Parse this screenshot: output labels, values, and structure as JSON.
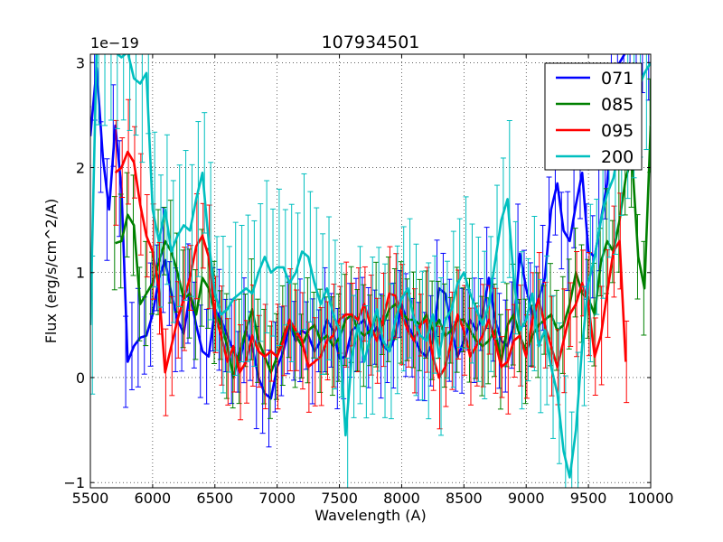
{
  "chart_data": {
    "type": "line",
    "title": "107934501",
    "xlabel": "Wavelength (A)",
    "ylabel": "Flux (erg/s/cm^2/A)",
    "y_offset_text": "1e−19",
    "xlim": [
      5500,
      10000
    ],
    "ylim": [
      -1.05,
      3.08
    ],
    "xticks": [
      5500,
      6000,
      6500,
      7000,
      7500,
      8000,
      8500,
      9000,
      9500,
      10000
    ],
    "yticks": [
      -1,
      0,
      1,
      2,
      3
    ],
    "ytick_labels": [
      "−1",
      "0",
      "1",
      "2",
      "3"
    ],
    "grid": true,
    "legend_position": "top-right",
    "series": [
      {
        "name": "071",
        "color": "#0000ff",
        "x": [
          5500,
          5550,
          5600,
          5650,
          5700,
          5750,
          5800,
          5850,
          5900,
          5950,
          6000,
          6050,
          6100,
          6150,
          6200,
          6250,
          6300,
          6350,
          6400,
          6450,
          6500,
          6550,
          6600,
          6650,
          6700,
          6750,
          6800,
          6850,
          6900,
          6950,
          7000,
          7050,
          7100,
          7150,
          7200,
          7250,
          7300,
          7350,
          7400,
          7450,
          7500,
          7550,
          7600,
          7650,
          7700,
          7750,
          7800,
          7850,
          7900,
          7950,
          8000,
          8050,
          8100,
          8150,
          8200,
          8250,
          8300,
          8350,
          8400,
          8450,
          8500,
          8550,
          8600,
          8650,
          8700,
          8750,
          8800,
          8850,
          8900,
          8950,
          9000,
          9050,
          9100,
          9150,
          9200,
          9250,
          9300,
          9350,
          9400,
          9450,
          9500,
          9550,
          9600,
          9650,
          9700,
          9750,
          9800,
          9850,
          9900,
          9950,
          10000
        ],
        "y": [
          2.3,
          2.95,
          2.1,
          1.6,
          2.4,
          1.8,
          0.15,
          0.3,
          0.38,
          0.4,
          0.6,
          0.95,
          1.12,
          0.8,
          0.55,
          0.42,
          0.8,
          0.5,
          0.25,
          0.2,
          0.65,
          0.55,
          0.4,
          0.25,
          0.15,
          0.45,
          0.3,
          0.0,
          -0.15,
          -0.2,
          0.1,
          0.25,
          0.5,
          0.35,
          0.45,
          0.4,
          0.25,
          0.35,
          0.55,
          0.45,
          0.18,
          0.2,
          0.45,
          0.5,
          0.55,
          0.38,
          0.48,
          0.3,
          0.25,
          0.4,
          0.7,
          0.5,
          0.38,
          0.25,
          0.2,
          0.35,
          0.85,
          0.8,
          0.45,
          0.2,
          0.35,
          0.55,
          0.45,
          0.6,
          0.95,
          0.55,
          0.35,
          0.3,
          0.5,
          1.18,
          0.85,
          0.6,
          0.75,
          0.95,
          1.6,
          1.85,
          1.4,
          1.3,
          1.65,
          1.95,
          1.2,
          1.15,
          1.5,
          1.85,
          2.6,
          3.0,
          3.1,
          3.1,
          3.1,
          3.1,
          3.1
        ]
      },
      {
        "name": "085",
        "color": "#008000",
        "x": [
          5700,
          5750,
          5800,
          5850,
          5900,
          5950,
          6000,
          6050,
          6100,
          6150,
          6200,
          6250,
          6300,
          6350,
          6400,
          6450,
          6500,
          6550,
          6600,
          6650,
          6700,
          6750,
          6800,
          6850,
          6900,
          6950,
          7000,
          7050,
          7100,
          7150,
          7200,
          7250,
          7300,
          7350,
          7400,
          7450,
          7500,
          7550,
          7600,
          7650,
          7700,
          7750,
          7800,
          7850,
          7900,
          7950,
          8000,
          8050,
          8100,
          8150,
          8200,
          8250,
          8300,
          8350,
          8400,
          8450,
          8500,
          8550,
          8600,
          8650,
          8700,
          8750,
          8800,
          8850,
          8900,
          8950,
          9000,
          9050,
          9100,
          9150,
          9200,
          9250,
          9300,
          9350,
          9400,
          9450,
          9500,
          9550,
          9600,
          9650,
          9700,
          9750,
          9800,
          9850,
          9900,
          9950,
          10000
        ],
        "y": [
          1.28,
          1.3,
          1.55,
          1.45,
          0.7,
          0.8,
          0.9,
          1.1,
          1.3,
          1.2,
          1.0,
          0.75,
          0.8,
          0.6,
          0.95,
          0.85,
          0.62,
          0.5,
          0.3,
          0.0,
          0.25,
          0.45,
          0.65,
          0.35,
          0.2,
          0.05,
          0.2,
          0.4,
          0.55,
          0.4,
          0.3,
          0.45,
          0.5,
          0.35,
          0.4,
          0.3,
          0.38,
          0.55,
          0.6,
          0.45,
          0.4,
          0.45,
          0.6,
          0.5,
          0.65,
          0.7,
          0.62,
          0.55,
          0.55,
          0.5,
          0.6,
          0.45,
          0.55,
          0.4,
          0.45,
          0.55,
          0.55,
          0.45,
          0.35,
          0.3,
          0.35,
          0.45,
          0.15,
          0.5,
          0.6,
          0.4,
          0.25,
          0.4,
          0.5,
          0.55,
          0.6,
          0.45,
          0.5,
          0.7,
          1.0,
          0.8,
          0.75,
          0.6,
          1.1,
          1.3,
          1.2,
          1.5,
          1.9,
          2.1,
          1.15,
          0.85,
          2.4
        ]
      },
      {
        "name": "095",
        "color": "#ff0000",
        "x": [
          5700,
          5750,
          5800,
          5850,
          5900,
          5950,
          6000,
          6050,
          6100,
          6150,
          6200,
          6250,
          6300,
          6350,
          6400,
          6450,
          6500,
          6550,
          6600,
          6650,
          6700,
          6750,
          6800,
          6850,
          6900,
          6950,
          7000,
          7050,
          7100,
          7150,
          7200,
          7250,
          7300,
          7350,
          7400,
          7450,
          7500,
          7550,
          7600,
          7650,
          7700,
          7750,
          7800,
          7850,
          7900,
          7950,
          8000,
          8050,
          8100,
          8150,
          8200,
          8250,
          8300,
          8350,
          8400,
          8450,
          8500,
          8550,
          8600,
          8650,
          8700,
          8750,
          8800,
          8850,
          8900,
          8950,
          9000,
          9050,
          9100,
          9150,
          9200,
          9250,
          9300,
          9350,
          9400,
          9450,
          9500,
          9550,
          9600,
          9650,
          9700,
          9750,
          9800
        ],
        "y": [
          1.95,
          2.0,
          2.15,
          2.05,
          1.65,
          1.35,
          1.2,
          0.85,
          0.05,
          0.3,
          0.55,
          0.75,
          0.95,
          1.25,
          1.35,
          1.15,
          0.6,
          0.4,
          0.15,
          0.3,
          0.05,
          0.15,
          0.4,
          0.25,
          0.2,
          0.25,
          0.2,
          0.35,
          0.55,
          0.45,
          0.35,
          0.1,
          0.15,
          0.2,
          0.35,
          0.4,
          0.55,
          0.6,
          0.6,
          0.55,
          0.7,
          0.5,
          0.35,
          0.55,
          0.8,
          0.78,
          0.6,
          0.45,
          0.35,
          0.5,
          0.55,
          0.2,
          0.0,
          0.1,
          0.35,
          0.6,
          0.45,
          0.2,
          0.3,
          0.4,
          0.55,
          0.35,
          0.1,
          0.15,
          0.35,
          0.4,
          0.2,
          0.55,
          0.75,
          0.5,
          0.3,
          0.1,
          0.35,
          0.6,
          0.7,
          0.9,
          0.7,
          0.2,
          0.4,
          0.8,
          1.2,
          1.3,
          0.15
        ]
      },
      {
        "name": "200",
        "color": "#00bfbf",
        "x": [
          5500,
          5550,
          5600,
          5650,
          5700,
          5750,
          5800,
          5850,
          5900,
          5950,
          6000,
          6050,
          6100,
          6150,
          6200,
          6250,
          6300,
          6350,
          6400,
          6450,
          6500,
          6550,
          6600,
          6650,
          6700,
          6750,
          6800,
          6850,
          6900,
          6950,
          7000,
          7050,
          7100,
          7150,
          7200,
          7250,
          7300,
          7350,
          7400,
          7450,
          7500,
          7550,
          7600,
          7650,
          7700,
          7750,
          7800,
          7850,
          7900,
          7950,
          8000,
          8050,
          8100,
          8150,
          8200,
          8250,
          8300,
          8350,
          8400,
          8450,
          8500,
          8550,
          8600,
          8650,
          8700,
          8750,
          8800,
          8850,
          8900,
          8950,
          9000,
          9050,
          9100,
          9150,
          9200,
          9250,
          9300,
          9350,
          9400,
          9450,
          9500,
          9550,
          9600,
          9650,
          9700,
          9750,
          9800,
          9850,
          9900,
          9950,
          10000
        ],
        "y": [
          0.5,
          3.1,
          3.1,
          3.1,
          3.1,
          3.05,
          3.1,
          2.85,
          2.8,
          2.9,
          1.6,
          1.3,
          1.6,
          1.2,
          1.35,
          1.45,
          1.4,
          1.7,
          1.95,
          1.3,
          0.8,
          0.6,
          0.65,
          0.75,
          0.8,
          0.85,
          0.8,
          1.0,
          1.15,
          1.0,
          1.05,
          1.05,
          0.9,
          1.0,
          1.2,
          1.15,
          0.9,
          0.7,
          0.85,
          0.6,
          0.45,
          -0.55,
          0.2,
          0.5,
          0.15,
          0.4,
          0.65,
          0.35,
          0.25,
          0.55,
          0.75,
          0.85,
          0.55,
          0.4,
          0.35,
          0.6,
          0.2,
          0.55,
          0.65,
          0.9,
          1.0,
          0.8,
          0.65,
          0.5,
          0.7,
          1.1,
          1.5,
          1.7,
          0.95,
          0.45,
          0.55,
          0.8,
          0.3,
          0.45,
          0.1,
          -0.15,
          -0.7,
          -0.95,
          -0.5,
          0.3,
          0.9,
          1.15,
          1.5,
          1.75,
          1.9,
          2.2,
          2.4,
          2.6,
          2.75,
          2.9,
          3.0
        ]
      }
    ]
  }
}
